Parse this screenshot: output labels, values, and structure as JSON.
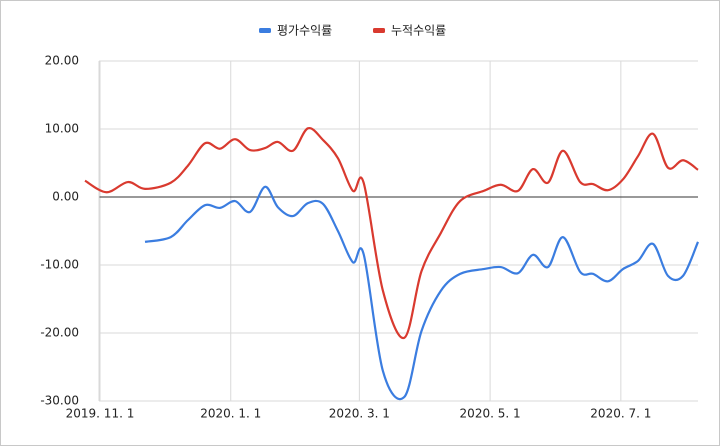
{
  "chart_data": {
    "type": "line",
    "x": [
      "2019-10-25",
      "2019-11-04",
      "2019-11-14",
      "2019-11-22",
      "2019-12-04",
      "2019-12-12",
      "2019-12-20",
      "2019-12-27",
      "2020-01-03",
      "2020-01-10",
      "2020-01-17",
      "2020-01-23",
      "2020-01-30",
      "2020-02-06",
      "2020-02-13",
      "2020-02-20",
      "2020-02-27",
      "2020-03-03",
      "2020-03-12",
      "2020-03-22",
      "2020-03-30",
      "2020-04-08",
      "2020-04-17",
      "2020-04-28",
      "2020-05-06",
      "2020-05-14",
      "2020-05-21",
      "2020-05-28",
      "2020-06-04",
      "2020-06-12",
      "2020-06-18",
      "2020-06-25",
      "2020-07-02",
      "2020-07-09",
      "2020-07-16",
      "2020-07-23",
      "2020-07-30",
      "2020-08-06"
    ],
    "series": [
      {
        "name": "평가수익률",
        "color": "#3b7de0",
        "values": [
          null,
          null,
          null,
          -6.6,
          -5.9,
          -3.4,
          -1.2,
          -1.6,
          -0.6,
          -2.2,
          1.5,
          -1.5,
          -2.8,
          -0.9,
          -1.0,
          -5.0,
          -9.6,
          -8.4,
          -25.6,
          -29.4,
          -19.7,
          -13.8,
          -11.3,
          -10.6,
          -10.3,
          -11.2,
          -8.5,
          -10.3,
          -5.9,
          -11.0,
          -11.3,
          -12.4,
          -10.6,
          -9.4,
          -6.9,
          -11.6,
          -11.6,
          -6.6
        ]
      },
      {
        "name": "누적수익률",
        "color": "#d93a2f",
        "values": [
          2.4,
          0.7,
          2.2,
          1.2,
          2.1,
          4.6,
          7.9,
          7.1,
          8.5,
          6.9,
          7.2,
          8.1,
          6.8,
          10.1,
          8.4,
          5.7,
          0.9,
          2.1,
          -13.8,
          -20.7,
          -10.9,
          -5.3,
          -0.6,
          0.9,
          1.8,
          0.9,
          4.1,
          2.1,
          6.8,
          2.2,
          1.9,
          1.0,
          2.6,
          6.0,
          9.3,
          4.3,
          5.4,
          4.0
        ]
      }
    ],
    "xlim": [
      "2019-10-25",
      "2020-08-06"
    ],
    "xticks": [
      {
        "value": "2019-11-01",
        "label": "2019. 11. 1"
      },
      {
        "value": "2020-01-01",
        "label": "2020. 1. 1"
      },
      {
        "value": "2020-03-01",
        "label": "2020. 3. 1"
      },
      {
        "value": "2020-05-01",
        "label": "2020. 5. 1"
      },
      {
        "value": "2020-07-01",
        "label": "2020. 7. 1"
      }
    ],
    "ylim": [
      -30,
      20
    ],
    "yticks": [
      {
        "value": -30,
        "label": "-30.00"
      },
      {
        "value": -20,
        "label": "-20.00"
      },
      {
        "value": -10,
        "label": "-10.00"
      },
      {
        "value": 0,
        "label": "0.00"
      },
      {
        "value": 10,
        "label": "10.00"
      },
      {
        "value": 20,
        "label": "20.00"
      }
    ],
    "grid": true,
    "legend": "top"
  }
}
